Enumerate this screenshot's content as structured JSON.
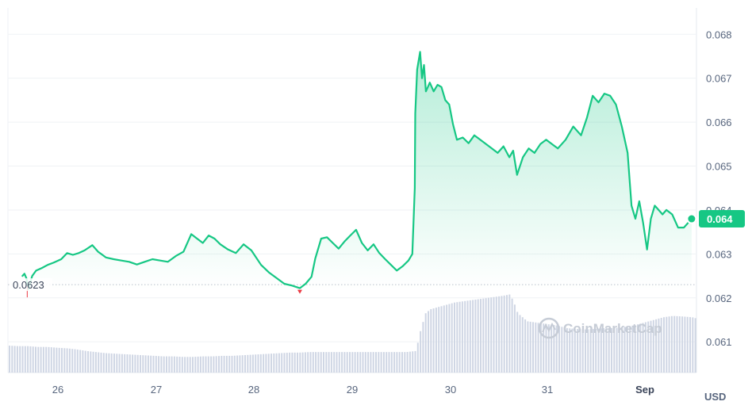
{
  "chart_data": {
    "type": "line",
    "currency_unit": "USD",
    "x_ticks": [
      "26",
      "27",
      "28",
      "29",
      "30",
      "31",
      "Sep"
    ],
    "y_ticks": [
      "0.068",
      "0.067",
      "0.066",
      "0.065",
      "0.064",
      "0.063",
      "0.062",
      "0.061"
    ],
    "ylim": [
      0.0603,
      0.0686
    ],
    "xlim": [
      25.45,
      32.55
    ],
    "grid": true,
    "reference_line": {
      "value": 0.0623,
      "label": "0.0623"
    },
    "current_price": {
      "value": 0.0638,
      "label": "0.064"
    },
    "watermark": "CoinMarketCap",
    "colors": {
      "line": "#16c784",
      "down_marker": "#ea3943",
      "volume": "#cfd6e4",
      "grid": "#eff2f5",
      "badge": "#16c784"
    },
    "series": [
      {
        "x": [
          25.6,
          25.62,
          25.64,
          25.66,
          25.7,
          25.74,
          25.8,
          25.86,
          25.92,
          26.0,
          26.06,
          26.12,
          26.18,
          26.24,
          26.32,
          26.38,
          26.46,
          26.54,
          26.62,
          26.7,
          26.78,
          26.86,
          26.94,
          27.02,
          27.1,
          27.18,
          27.26,
          27.34,
          27.4,
          27.46,
          27.52,
          27.58,
          27.64,
          27.72,
          27.8,
          27.88,
          27.96,
          28.06,
          28.14,
          28.22,
          28.3,
          28.38,
          28.46,
          28.52,
          28.58,
          28.62,
          28.68,
          28.74,
          28.8,
          28.86,
          28.92,
          28.98,
          29.04,
          29.1,
          29.16,
          29.22,
          29.28,
          29.34,
          29.4,
          29.46,
          29.52,
          29.58,
          29.62,
          29.645,
          29.65,
          29.67,
          29.7,
          29.72,
          29.74,
          29.76,
          29.78,
          29.8,
          29.84,
          29.88,
          29.92,
          29.96,
          30.0,
          30.04,
          30.08,
          30.14,
          30.2,
          30.26,
          30.32,
          30.38,
          30.44,
          30.5,
          30.56,
          30.62,
          30.66,
          30.7,
          30.76,
          30.82,
          30.88,
          30.94,
          31.0,
          31.06,
          31.12,
          31.2,
          31.28,
          31.36,
          31.42,
          31.48,
          31.54,
          31.6,
          31.66,
          31.72,
          31.78,
          31.84,
          31.88,
          31.92,
          31.96,
          32.0,
          32.04,
          32.08,
          32.12,
          32.16,
          32.2,
          32.24,
          32.3,
          32.36,
          32.42,
          32.46,
          32.5
        ],
        "y": [
          0.0625,
          0.06255,
          0.06245,
          0.0622,
          0.0625,
          0.06262,
          0.06268,
          0.06275,
          0.0628,
          0.06288,
          0.06302,
          0.06298,
          0.06302,
          0.06308,
          0.0632,
          0.06305,
          0.06292,
          0.06288,
          0.06285,
          0.06282,
          0.06276,
          0.06282,
          0.06288,
          0.06285,
          0.06282,
          0.06295,
          0.06305,
          0.06345,
          0.06335,
          0.06325,
          0.06342,
          0.06335,
          0.06322,
          0.0631,
          0.06302,
          0.06322,
          0.06308,
          0.06275,
          0.06258,
          0.06245,
          0.06232,
          0.06228,
          0.06222,
          0.06232,
          0.06248,
          0.0629,
          0.06335,
          0.06338,
          0.06325,
          0.06312,
          0.06328,
          0.06342,
          0.06355,
          0.06325,
          0.06308,
          0.06322,
          0.06302,
          0.06288,
          0.06275,
          0.06262,
          0.06272,
          0.06285,
          0.063,
          0.0645,
          0.0662,
          0.0672,
          0.0676,
          0.067,
          0.0673,
          0.0667,
          0.0668,
          0.0669,
          0.0667,
          0.06685,
          0.0668,
          0.0665,
          0.0664,
          0.06595,
          0.0656,
          0.06565,
          0.06552,
          0.0657,
          0.0656,
          0.0655,
          0.0654,
          0.0653,
          0.06545,
          0.0652,
          0.06535,
          0.0648,
          0.0652,
          0.0654,
          0.0653,
          0.0655,
          0.0656,
          0.0655,
          0.0654,
          0.0656,
          0.0659,
          0.0657,
          0.0661,
          0.0666,
          0.06645,
          0.06665,
          0.0666,
          0.0664,
          0.0659,
          0.0653,
          0.0641,
          0.0638,
          0.0642,
          0.0637,
          0.0631,
          0.0638,
          0.0641,
          0.064,
          0.0639,
          0.064,
          0.0639,
          0.0636,
          0.0636,
          0.0637,
          0.0638
        ]
      }
    ],
    "volume": {
      "x": [
        25.45,
        25.55,
        25.65,
        25.75,
        25.85,
        25.95,
        26.05,
        26.15,
        26.25,
        26.35,
        26.45,
        26.55,
        26.65,
        26.75,
        26.85,
        26.95,
        27.05,
        27.15,
        27.25,
        27.35,
        27.45,
        27.55,
        27.65,
        27.75,
        27.85,
        27.95,
        28.05,
        28.15,
        28.25,
        28.35,
        28.45,
        28.55,
        28.65,
        28.75,
        28.85,
        28.95,
        29.05,
        29.15,
        29.25,
        29.35,
        29.45,
        29.55,
        29.65,
        29.7,
        29.75,
        29.8,
        29.85,
        29.9,
        29.95,
        30.0,
        30.05,
        30.15,
        30.25,
        30.35,
        30.45,
        30.55,
        30.62,
        30.66,
        30.7,
        30.8,
        30.9,
        31.0,
        31.1,
        31.2,
        31.3,
        31.4,
        31.5,
        31.6,
        31.7,
        31.8,
        31.9,
        32.0,
        32.1,
        32.2,
        32.3,
        32.4,
        32.5,
        32.55
      ],
      "values": [
        1.0,
        0.98,
        0.98,
        0.95,
        0.95,
        0.92,
        0.9,
        0.86,
        0.8,
        0.76,
        0.72,
        0.7,
        0.68,
        0.66,
        0.64,
        0.62,
        0.6,
        0.6,
        0.58,
        0.58,
        0.6,
        0.6,
        0.62,
        0.62,
        0.64,
        0.66,
        0.68,
        0.7,
        0.72,
        0.74,
        0.74,
        0.76,
        0.76,
        0.76,
        0.76,
        0.76,
        0.76,
        0.76,
        0.76,
        0.76,
        0.76,
        0.76,
        0.8,
        1.6,
        2.2,
        2.35,
        2.4,
        2.45,
        2.5,
        2.55,
        2.6,
        2.65,
        2.7,
        2.75,
        2.8,
        2.85,
        2.9,
        2.6,
        2.2,
        1.9,
        1.85,
        1.8,
        1.75,
        1.65,
        1.62,
        1.6,
        1.62,
        1.65,
        1.65,
        1.7,
        1.75,
        1.85,
        1.95,
        2.05,
        2.1,
        2.08,
        2.05,
        2.0
      ]
    }
  }
}
